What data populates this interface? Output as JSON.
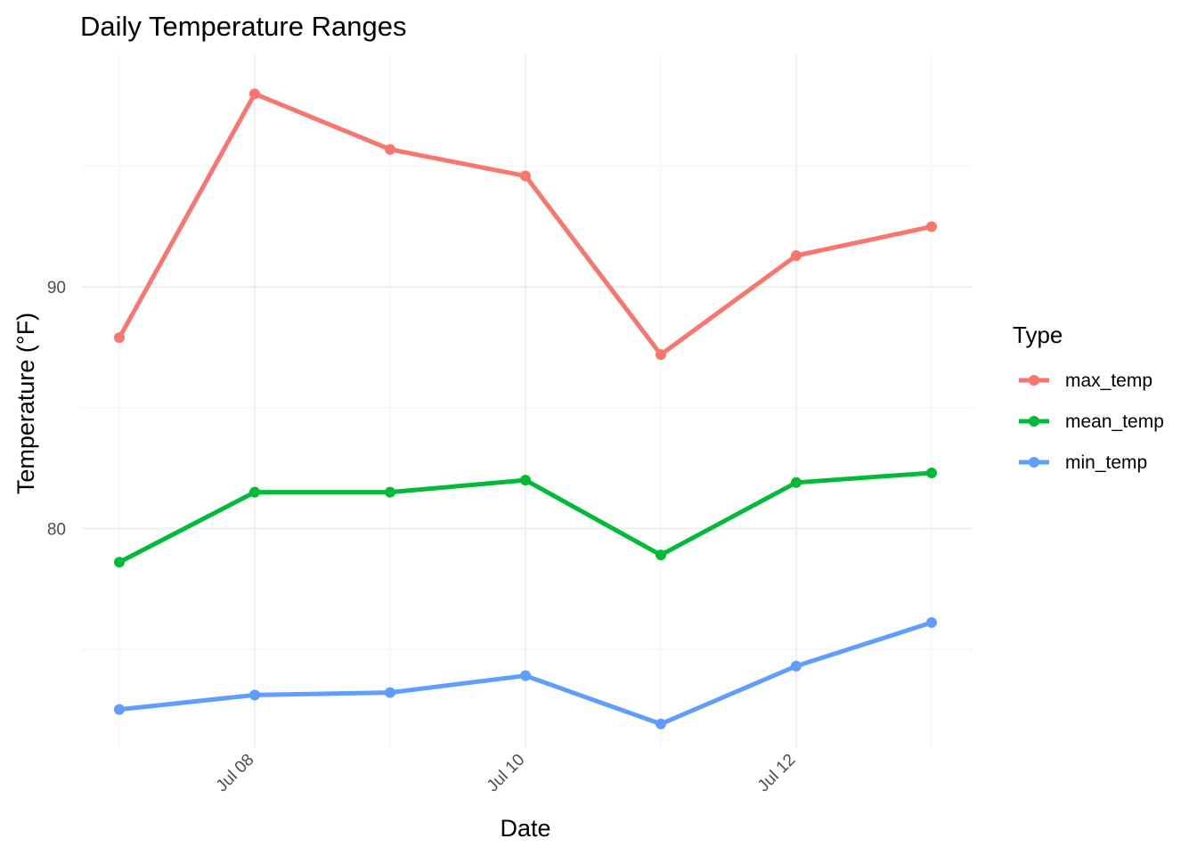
{
  "chart_data": {
    "type": "line",
    "title": "Daily Temperature Ranges",
    "xlabel": "Date",
    "ylabel": "Temperature (°F)",
    "x": [
      "2023-07-07",
      "2023-07-08",
      "2023-07-09",
      "2023-07-10",
      "2023-07-11",
      "2023-07-12",
      "2023-07-13"
    ],
    "x_ticks": [
      {
        "date": "2023-07-08",
        "label": "Jul 08"
      },
      {
        "date": "2023-07-10",
        "label": "Jul 10"
      },
      {
        "date": "2023-07-12",
        "label": "Jul 12"
      }
    ],
    "y_ticks": [
      80,
      90
    ],
    "ylim": [
      70.9,
      99.6
    ],
    "grid": true,
    "legend": {
      "title": "Type",
      "position": "right"
    },
    "series": [
      {
        "name": "max_temp",
        "color": "#F8766D",
        "values": [
          87.9,
          98.0,
          95.7,
          94.6,
          87.2,
          91.3,
          92.5
        ]
      },
      {
        "name": "mean_temp",
        "color": "#00BA38",
        "values": [
          78.6,
          81.5,
          81.5,
          82.0,
          78.9,
          81.9,
          82.3
        ]
      },
      {
        "name": "min_temp",
        "color": "#619CFF",
        "values": [
          72.5,
          73.1,
          73.2,
          73.9,
          71.9,
          74.3,
          76.1
        ]
      }
    ]
  }
}
